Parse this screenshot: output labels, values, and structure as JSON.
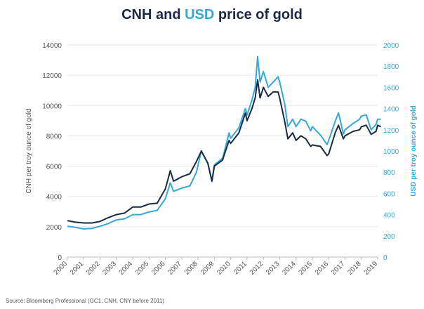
{
  "title": {
    "part1": "CNH and ",
    "part2": "USD",
    "part3": " price of gold"
  },
  "source": "Source: Bloomberg Professional (GC1, CNH, CNY before 2011)",
  "colors": {
    "cnh": "#1a2a44",
    "usd": "#35a9d6",
    "axis_left": "#555555",
    "grid": "#e6e6e6"
  },
  "chart_data": {
    "type": "line",
    "title": "CNH and USD price of gold",
    "x_label": "",
    "x_ticks": [
      "2000",
      "2001",
      "2002",
      "2003",
      "2004",
      "2005",
      "2006",
      "2007",
      "2008",
      "2009",
      "2010",
      "2011",
      "2012",
      "2013",
      "2014",
      "2015",
      "2016",
      "2017",
      "2018",
      "2019"
    ],
    "x_range": [
      2000,
      2019
    ],
    "y_left": {
      "label": "CNH per troy ounce of gold",
      "range": [
        0,
        14000
      ],
      "ticks": [
        0,
        2000,
        4000,
        6000,
        8000,
        10000,
        12000,
        14000
      ]
    },
    "y_right": {
      "label": "USD per troy ounce of gold",
      "range": [
        0,
        2000
      ],
      "ticks": [
        0,
        200,
        400,
        600,
        800,
        1000,
        1200,
        1400,
        1600,
        1800,
        2000
      ]
    },
    "grid": "horizontal",
    "series": [
      {
        "name": "CNH",
        "axis": "left",
        "points": [
          [
            2000.0,
            2400
          ],
          [
            2000.5,
            2300
          ],
          [
            2001.0,
            2250
          ],
          [
            2001.5,
            2250
          ],
          [
            2002.0,
            2350
          ],
          [
            2002.5,
            2600
          ],
          [
            2003.0,
            2800
          ],
          [
            2003.5,
            2900
          ],
          [
            2004.0,
            3300
          ],
          [
            2004.5,
            3300
          ],
          [
            2005.0,
            3500
          ],
          [
            2005.5,
            3550
          ],
          [
            2006.0,
            4500
          ],
          [
            2006.3,
            5700
          ],
          [
            2006.5,
            5000
          ],
          [
            2007.0,
            5300
          ],
          [
            2007.5,
            5500
          ],
          [
            2007.9,
            6300
          ],
          [
            2008.2,
            7000
          ],
          [
            2008.6,
            6200
          ],
          [
            2008.85,
            5000
          ],
          [
            2009.0,
            6000
          ],
          [
            2009.5,
            6400
          ],
          [
            2009.9,
            7700
          ],
          [
            2010.0,
            7500
          ],
          [
            2010.5,
            8200
          ],
          [
            2010.9,
            9500
          ],
          [
            2011.0,
            9000
          ],
          [
            2011.3,
            9800
          ],
          [
            2011.5,
            10500
          ],
          [
            2011.65,
            11700
          ],
          [
            2011.8,
            10500
          ],
          [
            2012.0,
            11200
          ],
          [
            2012.3,
            10600
          ],
          [
            2012.6,
            10900
          ],
          [
            2012.9,
            10900
          ],
          [
            2013.0,
            10500
          ],
          [
            2013.3,
            9000
          ],
          [
            2013.5,
            7800
          ],
          [
            2013.8,
            8200
          ],
          [
            2014.0,
            7700
          ],
          [
            2014.3,
            8000
          ],
          [
            2014.6,
            7800
          ],
          [
            2014.9,
            7300
          ],
          [
            2015.0,
            7400
          ],
          [
            2015.5,
            7300
          ],
          [
            2015.9,
            6700
          ],
          [
            2016.0,
            6800
          ],
          [
            2016.4,
            8200
          ],
          [
            2016.6,
            8700
          ],
          [
            2016.9,
            7800
          ],
          [
            2017.0,
            8000
          ],
          [
            2017.5,
            8300
          ],
          [
            2017.9,
            8400
          ],
          [
            2018.0,
            8600
          ],
          [
            2018.3,
            8700
          ],
          [
            2018.6,
            8100
          ],
          [
            2018.9,
            8300
          ],
          [
            2019.0,
            8700
          ],
          [
            2019.2,
            8600
          ]
        ]
      },
      {
        "name": "USD",
        "axis": "right",
        "points": [
          [
            2000.0,
            290
          ],
          [
            2000.5,
            280
          ],
          [
            2001.0,
            265
          ],
          [
            2001.5,
            270
          ],
          [
            2002.0,
            290
          ],
          [
            2002.5,
            315
          ],
          [
            2003.0,
            350
          ],
          [
            2003.5,
            360
          ],
          [
            2004.0,
            400
          ],
          [
            2004.5,
            400
          ],
          [
            2005.0,
            425
          ],
          [
            2005.5,
            440
          ],
          [
            2006.0,
            550
          ],
          [
            2006.3,
            700
          ],
          [
            2006.5,
            620
          ],
          [
            2007.0,
            650
          ],
          [
            2007.5,
            670
          ],
          [
            2007.9,
            800
          ],
          [
            2008.2,
            1000
          ],
          [
            2008.6,
            880
          ],
          [
            2008.85,
            720
          ],
          [
            2009.0,
            870
          ],
          [
            2009.5,
            930
          ],
          [
            2009.9,
            1170
          ],
          [
            2010.0,
            1120
          ],
          [
            2010.5,
            1220
          ],
          [
            2010.9,
            1400
          ],
          [
            2011.0,
            1340
          ],
          [
            2011.3,
            1480
          ],
          [
            2011.5,
            1600
          ],
          [
            2011.65,
            1890
          ],
          [
            2011.8,
            1650
          ],
          [
            2012.0,
            1750
          ],
          [
            2012.3,
            1600
          ],
          [
            2012.6,
            1650
          ],
          [
            2012.9,
            1700
          ],
          [
            2013.0,
            1650
          ],
          [
            2013.3,
            1450
          ],
          [
            2013.5,
            1230
          ],
          [
            2013.8,
            1300
          ],
          [
            2014.0,
            1230
          ],
          [
            2014.3,
            1300
          ],
          [
            2014.6,
            1280
          ],
          [
            2014.9,
            1190
          ],
          [
            2015.0,
            1230
          ],
          [
            2015.5,
            1150
          ],
          [
            2015.9,
            1060
          ],
          [
            2016.0,
            1100
          ],
          [
            2016.4,
            1280
          ],
          [
            2016.6,
            1360
          ],
          [
            2016.9,
            1160
          ],
          [
            2017.0,
            1200
          ],
          [
            2017.5,
            1260
          ],
          [
            2017.9,
            1300
          ],
          [
            2018.0,
            1330
          ],
          [
            2018.3,
            1340
          ],
          [
            2018.6,
            1200
          ],
          [
            2018.9,
            1250
          ],
          [
            2019.0,
            1300
          ],
          [
            2019.2,
            1300
          ]
        ]
      }
    ]
  }
}
